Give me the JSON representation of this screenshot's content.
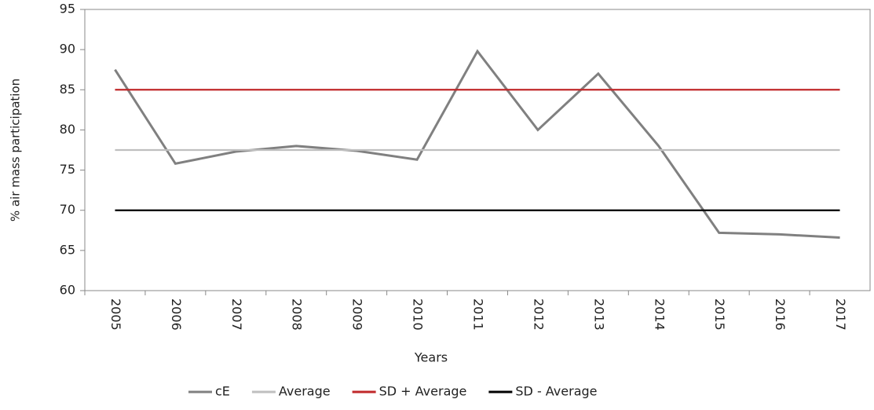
{
  "chart_data": {
    "type": "line",
    "x_label": "Years",
    "y_label": "% air mass participation",
    "categories": [
      "2005",
      "2006",
      "2007",
      "2008",
      "2009",
      "2010",
      "2011",
      "2012",
      "2013",
      "2014",
      "2015",
      "2016",
      "2017"
    ],
    "series": [
      {
        "name": "cE",
        "color": "#808080",
        "values": [
          87.5,
          75.8,
          77.3,
          78,
          77.4,
          76.3,
          89.8,
          80,
          87,
          78,
          67.2,
          67,
          66.6
        ]
      },
      {
        "name": "Average",
        "color": "#bfbfbf",
        "values": [
          77.5,
          77.5,
          77.5,
          77.5,
          77.5,
          77.5,
          77.5,
          77.5,
          77.5,
          77.5,
          77.5,
          77.5,
          77.5
        ]
      },
      {
        "name": "SD + Average",
        "color": "#c0282a",
        "values": [
          85,
          85,
          85,
          85,
          85,
          85,
          85,
          85,
          85,
          85,
          85,
          85,
          85
        ]
      },
      {
        "name": "SD - Average",
        "color": "#000000",
        "values": [
          70,
          70,
          70,
          70,
          70,
          70,
          70,
          70,
          70,
          70,
          70,
          70,
          70
        ]
      }
    ],
    "ylim": [
      60,
      95
    ],
    "yticks": [
      60,
      65,
      70,
      75,
      80,
      85,
      90,
      95
    ],
    "grid": false,
    "legend": "bottom"
  }
}
